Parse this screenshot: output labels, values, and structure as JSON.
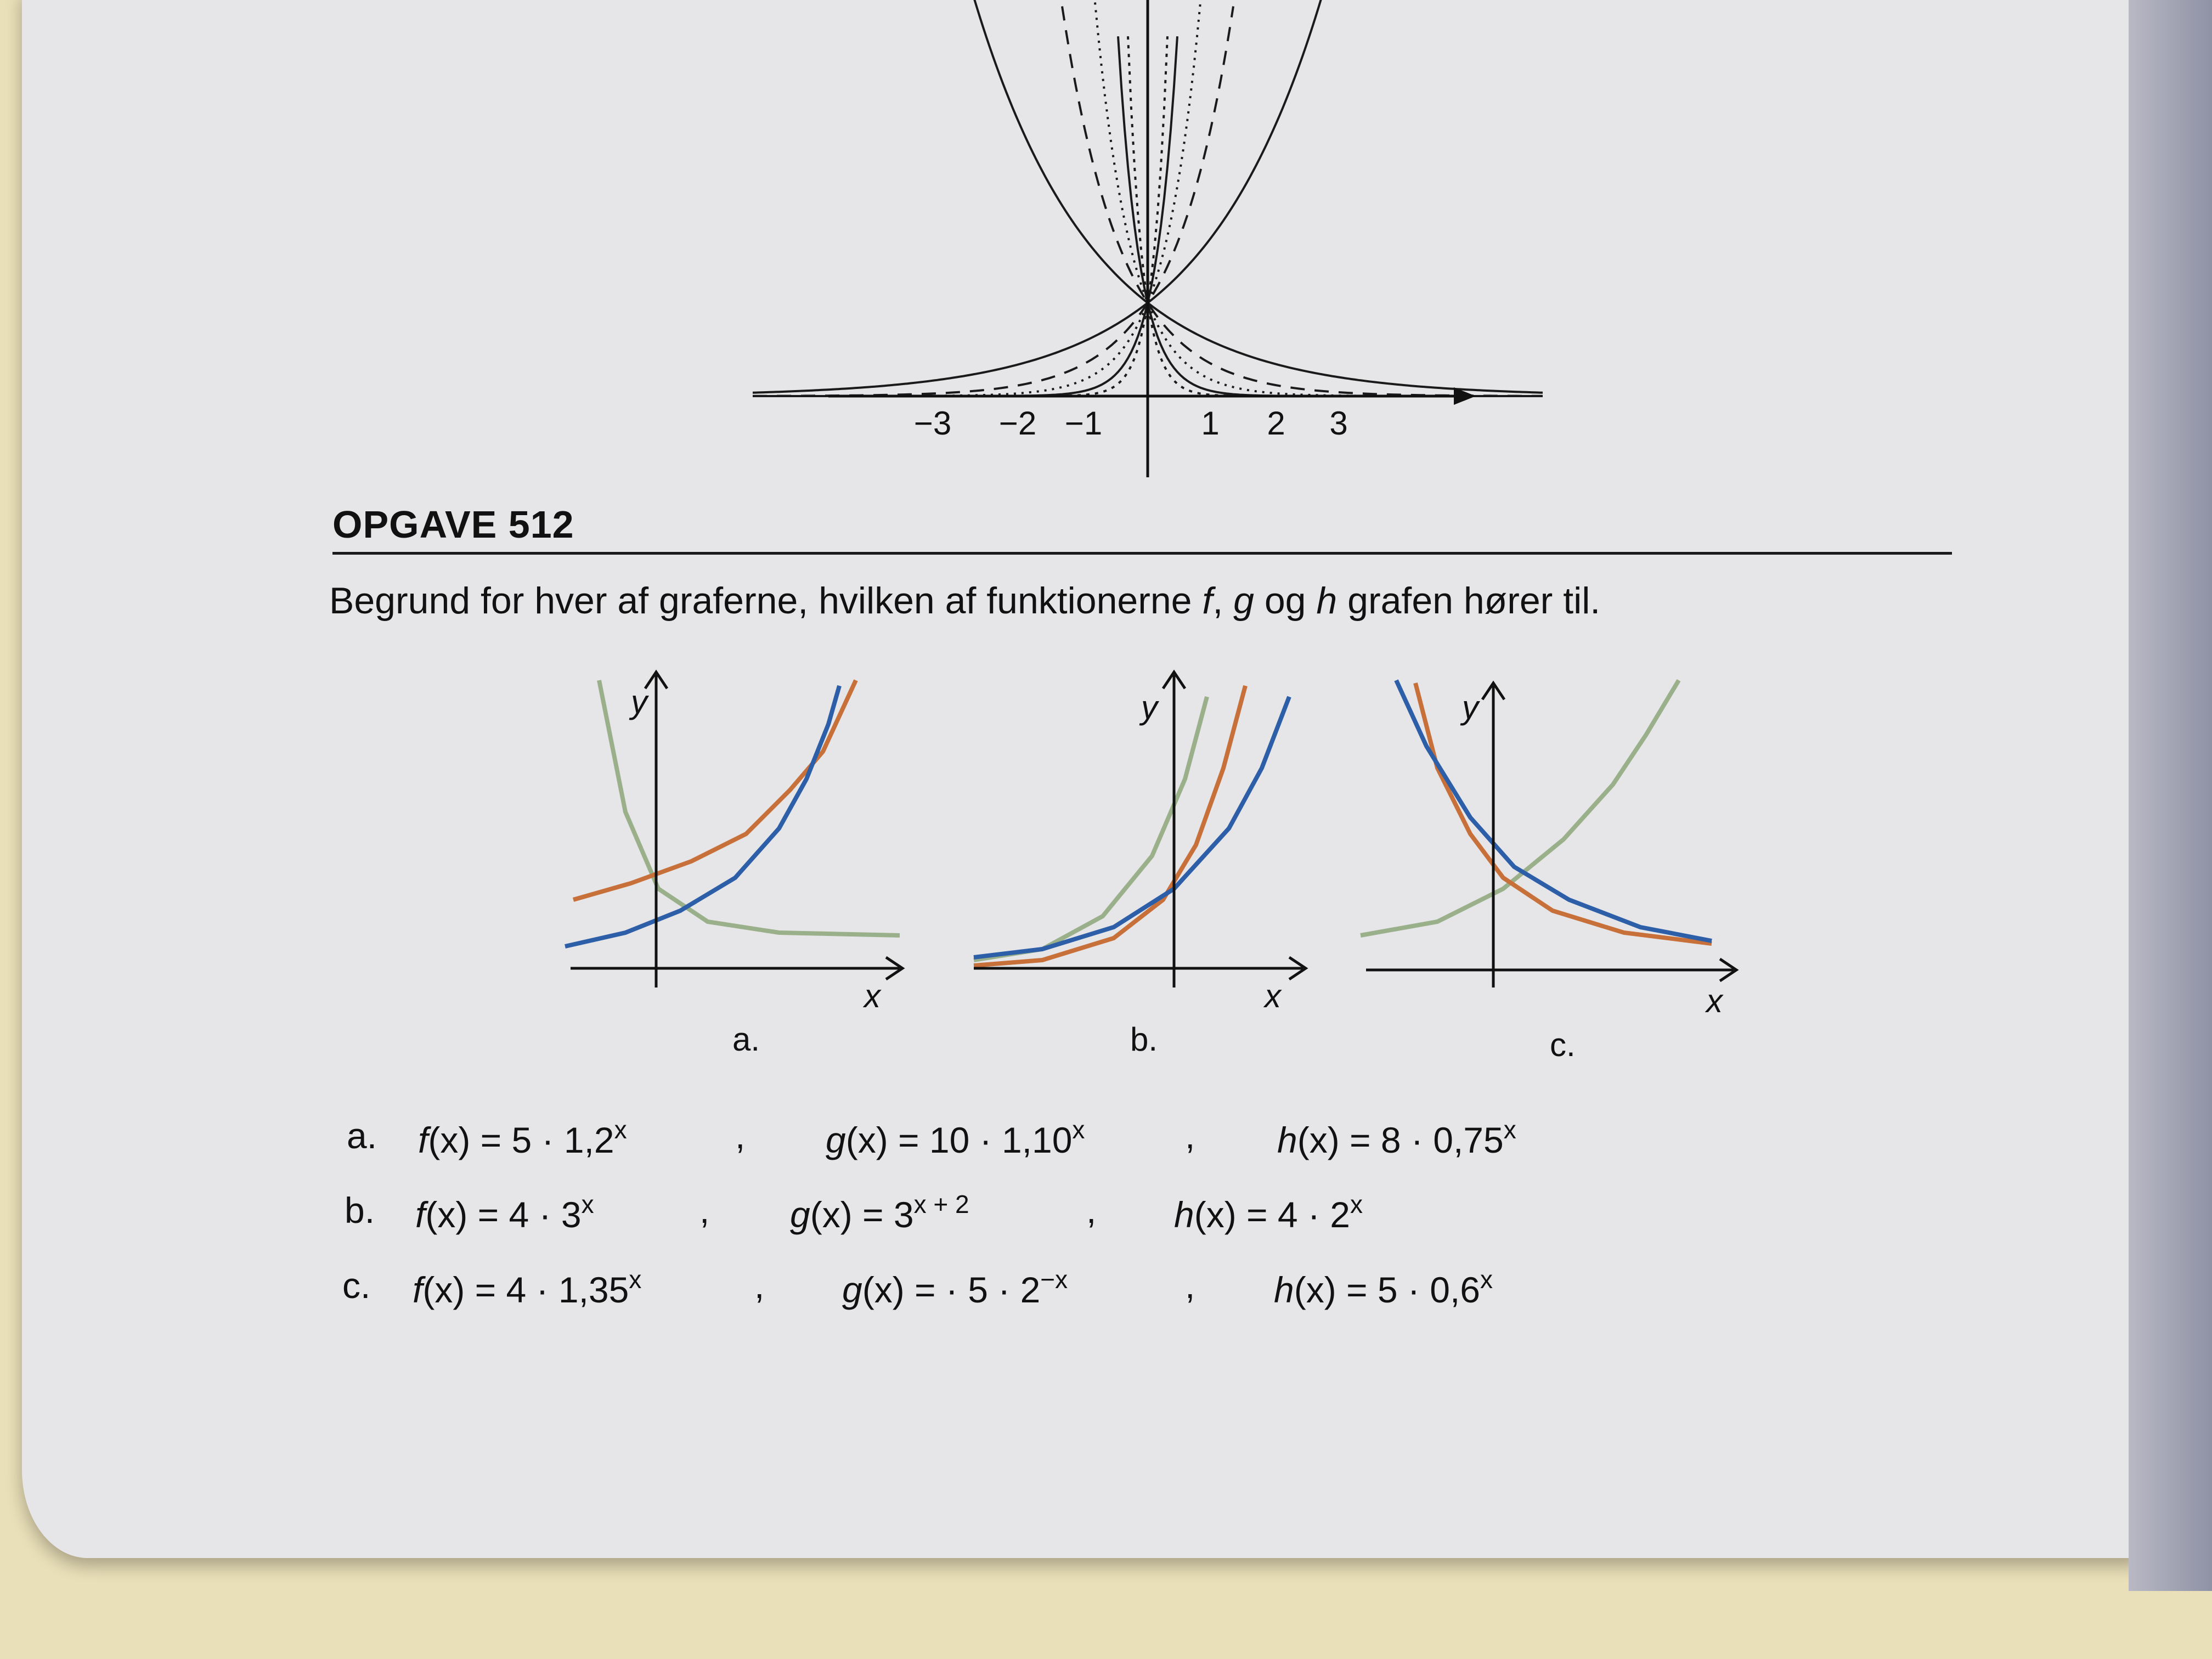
{
  "top_figure": {
    "tick_labels": [
      "−3",
      "−2",
      "−1",
      "1",
      "2",
      "3"
    ]
  },
  "exercise": {
    "heading": "OPGAVE 512",
    "question": {
      "before_f": "Begrund for hver af graferne, hvilken af funktionerne",
      "f": "f",
      "comma": ",",
      "g": "g",
      "og": "og",
      "h": "h",
      "after_h": "grafen hører til."
    }
  },
  "graphs": [
    {
      "label": "a.",
      "y": "y",
      "x": "x"
    },
    {
      "label": "b.",
      "y": "y",
      "x": "x"
    },
    {
      "label": "c.",
      "y": "y",
      "x": "x"
    }
  ],
  "colors": {
    "orange": "#c8703a",
    "blue": "#2d5ea8",
    "green": "#9ab08a",
    "ink": "#111111"
  },
  "answers": [
    {
      "label": "a.",
      "f": {
        "name": "f",
        "body": "(x) = 5 · 1,2",
        "exp": "x"
      },
      "sep1": ",",
      "g": {
        "name": "g",
        "body": "(x) = 10 · 1,10",
        "exp": "x"
      },
      "sep2": ",",
      "h": {
        "name": "h",
        "body": "(x) = 8 · 0,75",
        "exp": "x"
      }
    },
    {
      "label": "b.",
      "f": {
        "name": "f",
        "body": "(x) = 4 · 3",
        "exp": "x"
      },
      "sep1": ",",
      "g": {
        "name": "g",
        "body": "(x) = 3",
        "exp": "x + 2"
      },
      "sep2": ",",
      "h": {
        "name": "h",
        "body": "(x) = 4 · 2",
        "exp": "x"
      }
    },
    {
      "label": "c.",
      "f": {
        "name": "f",
        "body": "(x) = 4 · 1,35",
        "exp": "x"
      },
      "sep1": ",",
      "g": {
        "name": "g",
        "body": "(x) = · 5 · 2",
        "exp": "−x"
      },
      "sep2": ",",
      "h": {
        "name": "h",
        "body": "(x) = 5 · 0,6",
        "exp": "x"
      }
    }
  ]
}
